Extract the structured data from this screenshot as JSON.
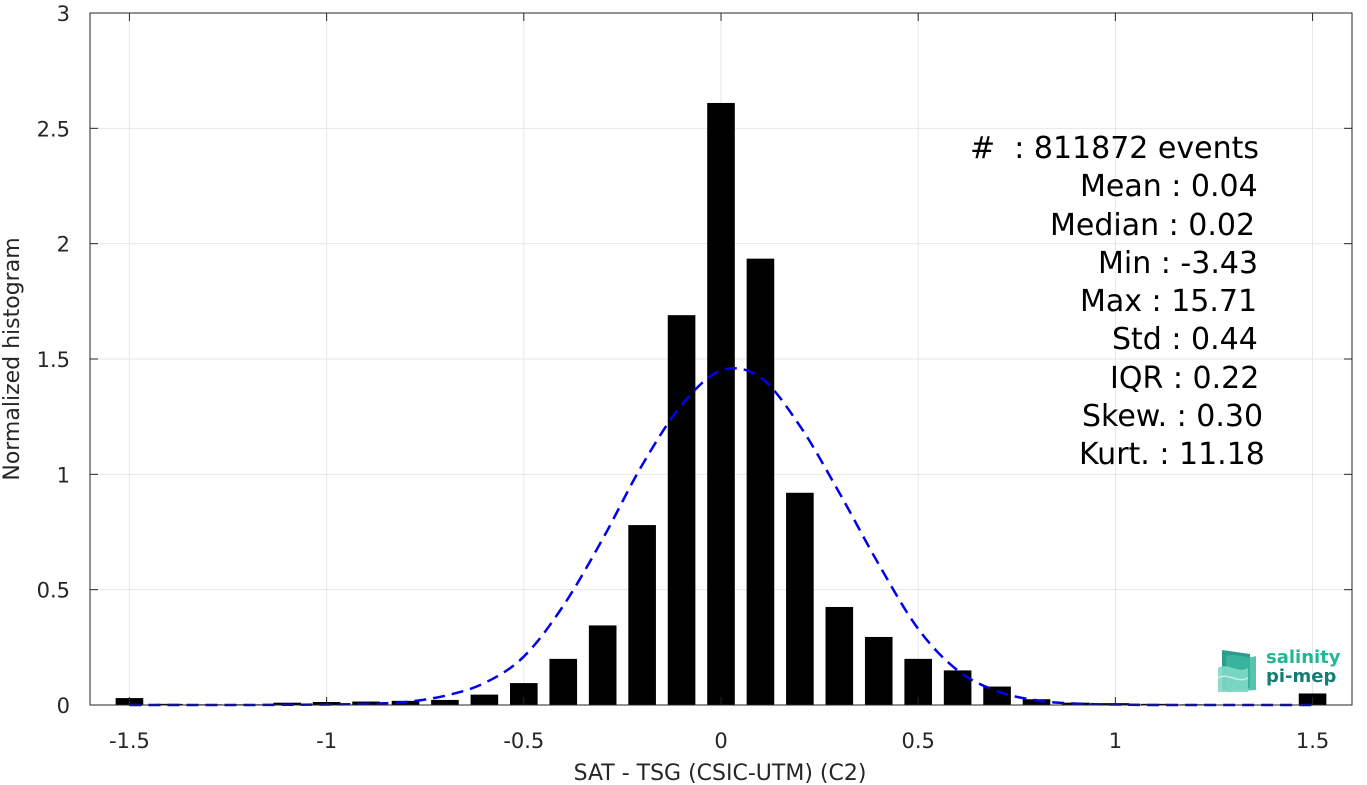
{
  "chart_data": {
    "type": "bar",
    "xlabel": "SAT - TSG (CSIC-UTM) (C2)",
    "ylabel": "Normalized histogram",
    "xlim": [
      -1.6,
      1.6
    ],
    "ylim": [
      0,
      3
    ],
    "grid": true,
    "xticks": [
      "-1.5",
      "-1",
      "-0.5",
      "0",
      "0.5",
      "1",
      "1.5"
    ],
    "yticks": [
      "0",
      "0.5",
      "1",
      "1.5",
      "2",
      "2.5",
      "3"
    ],
    "bar_color": "#000000",
    "bins": [
      {
        "x": -1.5,
        "y": 0.03
      },
      {
        "x": -1.4,
        "y": 0.005
      },
      {
        "x": -1.3,
        "y": 0.003
      },
      {
        "x": -1.2,
        "y": 0.003
      },
      {
        "x": -1.1,
        "y": 0.01
      },
      {
        "x": -1.0,
        "y": 0.013
      },
      {
        "x": -0.9,
        "y": 0.015
      },
      {
        "x": -0.8,
        "y": 0.018
      },
      {
        "x": -0.7,
        "y": 0.022
      },
      {
        "x": -0.6,
        "y": 0.045
      },
      {
        "x": -0.5,
        "y": 0.095
      },
      {
        "x": -0.4,
        "y": 0.2
      },
      {
        "x": -0.3,
        "y": 0.345
      },
      {
        "x": -0.2,
        "y": 0.78
      },
      {
        "x": -0.1,
        "y": 1.69
      },
      {
        "x": 0.0,
        "y": 2.61
      },
      {
        "x": 0.1,
        "y": 1.935
      },
      {
        "x": 0.2,
        "y": 0.92
      },
      {
        "x": 0.3,
        "y": 0.425
      },
      {
        "x": 0.4,
        "y": 0.295
      },
      {
        "x": 0.5,
        "y": 0.2
      },
      {
        "x": 0.6,
        "y": 0.15
      },
      {
        "x": 0.7,
        "y": 0.08
      },
      {
        "x": 0.8,
        "y": 0.025
      },
      {
        "x": 0.9,
        "y": 0.01
      },
      {
        "x": 1.0,
        "y": 0.008
      },
      {
        "x": 1.1,
        "y": 0.005
      },
      {
        "x": 1.2,
        "y": 0.003
      },
      {
        "x": 1.3,
        "y": 0.002
      },
      {
        "x": 1.4,
        "y": 0.002
      },
      {
        "x": 1.5,
        "y": 0.05
      }
    ],
    "fit_curve": {
      "style": "dashed",
      "color": "#0000ee",
      "points": [
        {
          "x": -1.5,
          "y": 0.0
        },
        {
          "x": -1.4,
          "y": 0.0
        },
        {
          "x": -1.3,
          "y": 0.0
        },
        {
          "x": -1.2,
          "y": 0.0
        },
        {
          "x": -1.1,
          "y": 0.001
        },
        {
          "x": -1.0,
          "y": 0.002
        },
        {
          "x": -0.9,
          "y": 0.005
        },
        {
          "x": -0.8,
          "y": 0.013
        },
        {
          "x": -0.7,
          "y": 0.04
        },
        {
          "x": -0.6,
          "y": 0.095
        },
        {
          "x": -0.5,
          "y": 0.21
        },
        {
          "x": -0.4,
          "y": 0.43
        },
        {
          "x": -0.3,
          "y": 0.72
        },
        {
          "x": -0.2,
          "y": 1.04
        },
        {
          "x": -0.1,
          "y": 1.3
        },
        {
          "x": 0.0,
          "y": 1.45
        },
        {
          "x": 0.1,
          "y": 1.42
        },
        {
          "x": 0.2,
          "y": 1.21
        },
        {
          "x": 0.3,
          "y": 0.92
        },
        {
          "x": 0.4,
          "y": 0.61
        },
        {
          "x": 0.5,
          "y": 0.33
        },
        {
          "x": 0.6,
          "y": 0.15
        },
        {
          "x": 0.7,
          "y": 0.06
        },
        {
          "x": 0.8,
          "y": 0.02
        },
        {
          "x": 0.9,
          "y": 0.006
        },
        {
          "x": 1.0,
          "y": 0.002
        },
        {
          "x": 1.1,
          "y": 0.0
        },
        {
          "x": 1.2,
          "y": 0.0
        },
        {
          "x": 1.3,
          "y": 0.0
        },
        {
          "x": 1.4,
          "y": 0.0
        },
        {
          "x": 1.5,
          "y": 0.0
        }
      ]
    },
    "annotations": {
      "events": "#  : 811872 events",
      "mean": "Mean : 0.04",
      "median": "Median : 0.02",
      "min": "Min : -3.43",
      "max": "Max : 15.71",
      "std": "Std : 0.44",
      "iqr": "IQR : 0.22",
      "skew": "Skew. : 0.30",
      "kurt": "Kurt. : 11.18"
    }
  },
  "logo": {
    "line1": "salinity",
    "line2": "pi-mep",
    "icon": "wave-stack-icon"
  }
}
